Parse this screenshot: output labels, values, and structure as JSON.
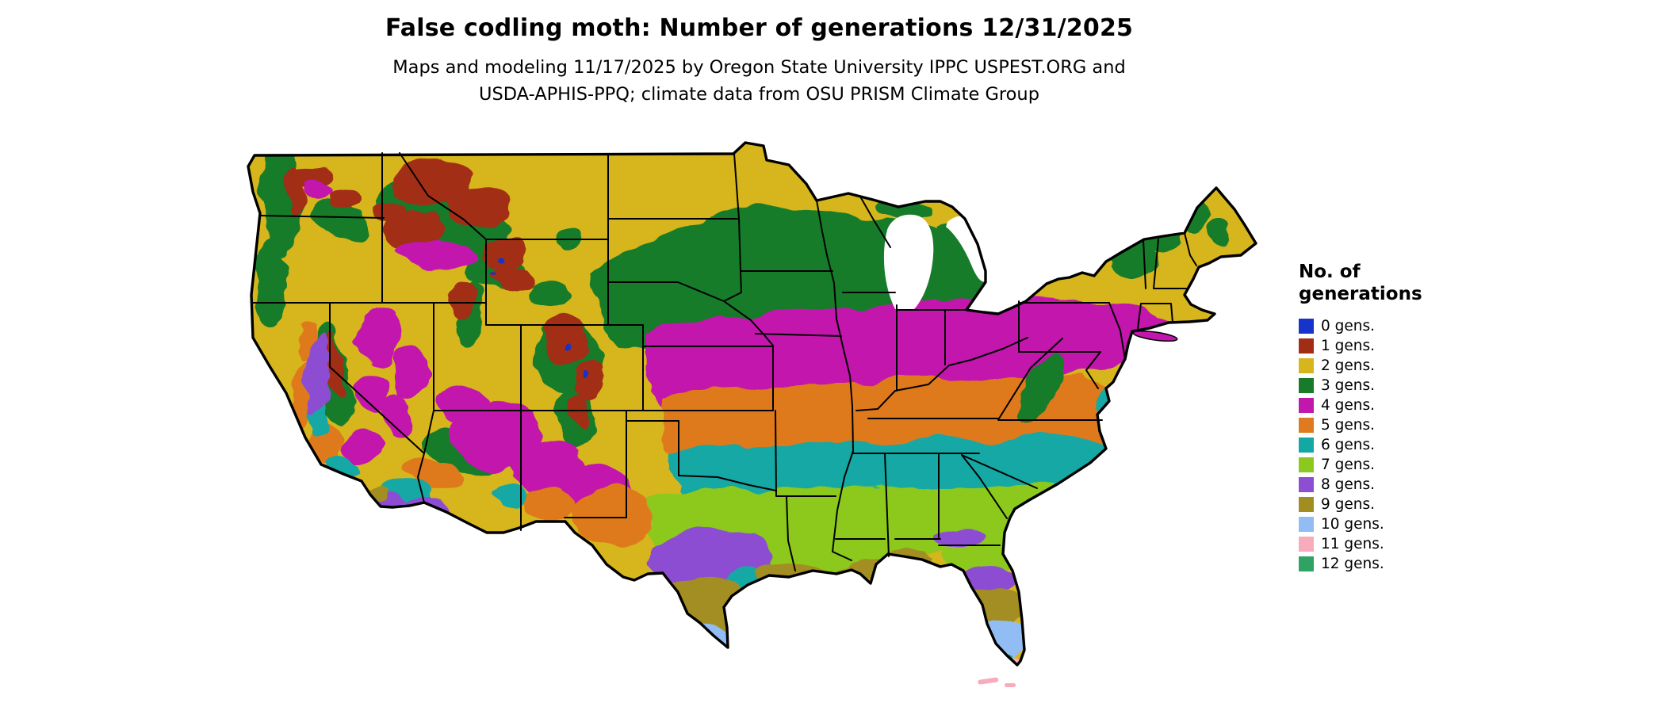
{
  "header": {
    "title": "False codling moth: Number of generations 12/31/2025",
    "subtitle_line1": "Maps and modeling 11/17/2025 by Oregon State University IPPC USPEST.ORG and",
    "subtitle_line2": "USDA-APHIS-PPQ; climate data from OSU PRISM Climate Group"
  },
  "map": {
    "type": "choropleth-raster-map",
    "region": "Continental United States",
    "variable": "Number of generations of false codling moth",
    "date_shown": "12/31/2025"
  },
  "legend": {
    "title": "No. of generations",
    "items": [
      {
        "label": "0 gens.",
        "color": "#1633cc"
      },
      {
        "label": "1 gens.",
        "color": "#a22d15"
      },
      {
        "label": "2 gens.",
        "color": "#d6b61c"
      },
      {
        "label": "3 gens.",
        "color": "#187b2a"
      },
      {
        "label": "4 gens.",
        "color": "#c217ad"
      },
      {
        "label": "5 gens.",
        "color": "#df7a1f"
      },
      {
        "label": "6 gens.",
        "color": "#14a8a4"
      },
      {
        "label": "7 gens.",
        "color": "#8cc91f"
      },
      {
        "label": "8 gens.",
        "color": "#8d4ed2"
      },
      {
        "label": "9 gens.",
        "color": "#a28e20"
      },
      {
        "label": "10 gens.",
        "color": "#92bdf4"
      },
      {
        "label": "11 gens.",
        "color": "#f8abbd"
      },
      {
        "label": "12 gens.",
        "color": "#2fa363"
      }
    ]
  }
}
